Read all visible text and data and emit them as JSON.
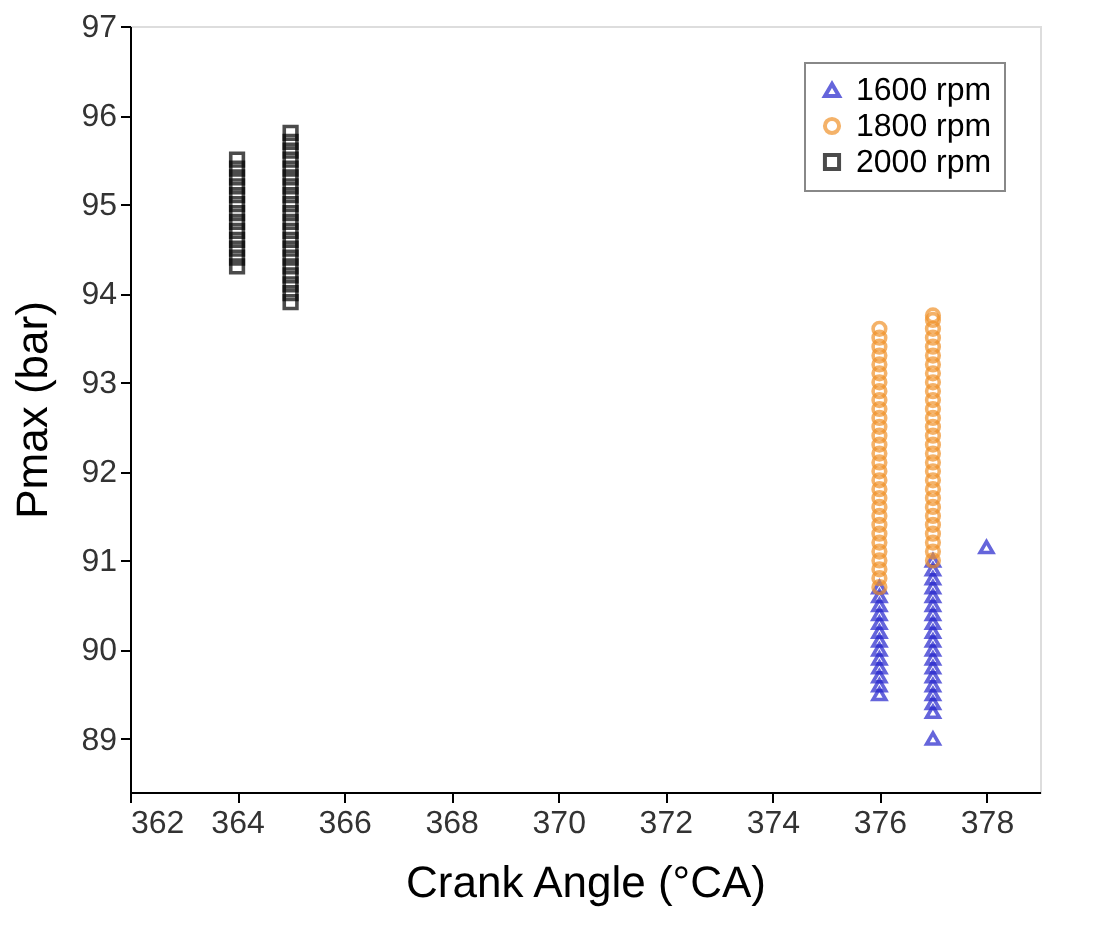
{
  "chart_data": {
    "type": "scatter",
    "xlabel": "Crank Angle (°CA)",
    "ylabel": "Pmax (bar)",
    "xlim": [
      362,
      379
    ],
    "xticks": [
      362,
      364,
      366,
      368,
      370,
      372,
      374,
      376,
      378
    ],
    "ylim": [
      88.4,
      97
    ],
    "yticks": [
      89,
      90,
      91,
      92,
      93,
      94,
      95,
      96,
      97
    ],
    "grid": false,
    "legend": "top right",
    "series": [
      {
        "name": "1600 rpm",
        "color": "#2424cc",
        "marker": "triangle",
        "x": [
          376,
          376,
          376,
          376,
          376,
          376,
          376,
          376,
          376,
          376,
          376,
          376,
          376,
          377,
          377,
          377,
          377,
          377,
          377,
          377,
          377,
          377,
          377,
          377,
          377,
          377,
          377,
          377,
          377,
          377,
          377,
          377,
          378
        ],
        "values": [
          89.5,
          89.6,
          89.7,
          89.8,
          89.9,
          90.0,
          90.1,
          90.2,
          90.3,
          90.4,
          90.5,
          90.6,
          90.7,
          89.0,
          89.3,
          89.4,
          89.5,
          89.6,
          89.7,
          89.8,
          89.9,
          90.0,
          90.1,
          90.2,
          90.3,
          90.4,
          90.5,
          90.6,
          90.7,
          90.8,
          90.9,
          91.0,
          91.15
        ]
      },
      {
        "name": "1800 rpm",
        "color": "#f0922a",
        "marker": "circle",
        "x": [
          376,
          376,
          376,
          376,
          376,
          376,
          376,
          376,
          376,
          376,
          376,
          376,
          376,
          376,
          376,
          376,
          376,
          376,
          376,
          376,
          376,
          376,
          376,
          376,
          376,
          376,
          376,
          376,
          376,
          376,
          377,
          377,
          377,
          377,
          377,
          377,
          377,
          377,
          377,
          377,
          377,
          377,
          377,
          377,
          377,
          377,
          377,
          377,
          377,
          377,
          377,
          377,
          377,
          377,
          377,
          377,
          377,
          377,
          377
        ],
        "values": [
          90.7,
          90.8,
          90.9,
          91.0,
          91.1,
          91.2,
          91.3,
          91.4,
          91.5,
          91.6,
          91.7,
          91.8,
          91.9,
          92.0,
          92.1,
          92.2,
          92.3,
          92.4,
          92.5,
          92.6,
          92.7,
          92.8,
          92.9,
          93.0,
          93.1,
          93.2,
          93.3,
          93.4,
          93.5,
          93.6,
          91.0,
          91.1,
          91.2,
          91.3,
          91.4,
          91.5,
          91.6,
          91.7,
          91.8,
          91.9,
          92.0,
          92.1,
          92.2,
          92.3,
          92.4,
          92.5,
          92.6,
          92.7,
          92.8,
          92.9,
          93.0,
          93.1,
          93.2,
          93.3,
          93.4,
          93.5,
          93.6,
          93.7,
          93.75
        ]
      },
      {
        "name": "2000 rpm",
        "color": "#000000",
        "marker": "square",
        "x": [
          364,
          364,
          364,
          364,
          364,
          364,
          364,
          364,
          364,
          364,
          364,
          364,
          364,
          365,
          365,
          365,
          365,
          365,
          365,
          365,
          365,
          365,
          365,
          365,
          365,
          365,
          365,
          365,
          365,
          365,
          365,
          365,
          365
        ],
        "values": [
          94.3,
          94.4,
          94.5,
          94.6,
          94.7,
          94.8,
          94.9,
          95.0,
          95.1,
          95.2,
          95.3,
          95.4,
          95.5,
          93.9,
          94.0,
          94.1,
          94.2,
          94.3,
          94.4,
          94.5,
          94.6,
          94.7,
          94.8,
          94.9,
          95.0,
          95.1,
          95.2,
          95.3,
          95.4,
          95.5,
          95.6,
          95.7,
          95.8
        ]
      }
    ]
  }
}
